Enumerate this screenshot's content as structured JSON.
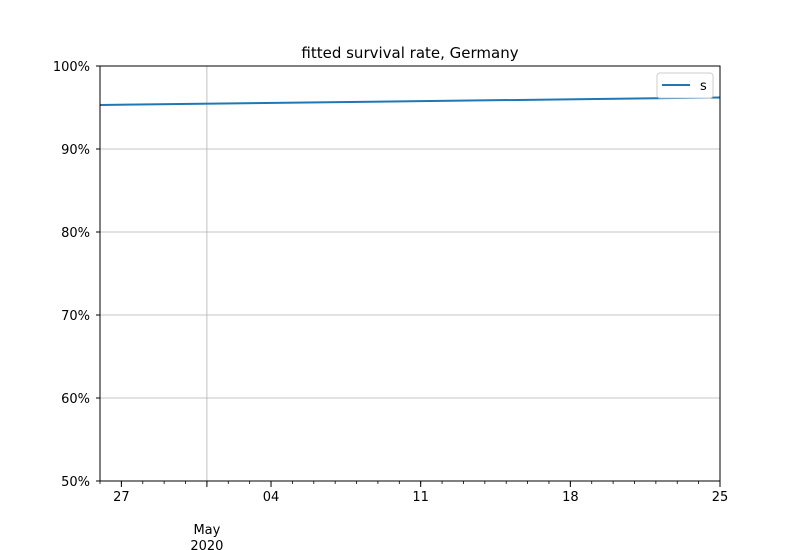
{
  "chart_data": {
    "type": "line",
    "title": "fitted survival rate, Germany",
    "xlabel": "",
    "ylabel": "",
    "x_range": [
      "2020-04-26",
      "2020-05-25"
    ],
    "ylim": [
      0.5,
      1.0
    ],
    "y_ticks": [
      {
        "value": 0.5,
        "label": "50%"
      },
      {
        "value": 0.6,
        "label": "60%"
      },
      {
        "value": 0.7,
        "label": "70%"
      },
      {
        "value": 0.8,
        "label": "80%"
      },
      {
        "value": 0.9,
        "label": "90%"
      },
      {
        "value": 1.0,
        "label": "100%"
      }
    ],
    "x_ticks": [
      {
        "date": "2020-04-27",
        "label": "27"
      },
      {
        "date": "2020-05-01",
        "label": "May",
        "sublabel": "2020"
      },
      {
        "date": "2020-05-04",
        "label": "04"
      },
      {
        "date": "2020-05-11",
        "label": "11"
      },
      {
        "date": "2020-05-18",
        "label": "18"
      },
      {
        "date": "2020-05-25",
        "label": "25"
      }
    ],
    "grid": true,
    "legend": "top-right",
    "series": [
      {
        "name": "s",
        "color": "#1f77b4",
        "x": [
          "2020-04-26",
          "2020-05-25"
        ],
        "y": [
          0.953,
          0.962
        ]
      }
    ]
  }
}
